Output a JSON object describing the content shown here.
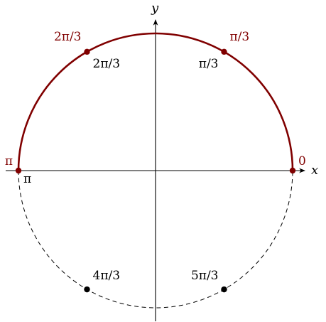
{
  "axes": {
    "x_label": "x",
    "y_label": "y"
  },
  "colors": {
    "accent": "#800000",
    "ink": "#000000"
  },
  "arc": {
    "from_angle": "0",
    "to_angle": "π",
    "style": "solid",
    "color": "#800000"
  },
  "lower_arc": {
    "style": "dashed",
    "color": "#000000"
  },
  "points": [
    {
      "name": "point-0",
      "angle": 0,
      "label": "0",
      "label_color": "#800000",
      "dot_color": "#800000"
    },
    {
      "name": "point-pi-over-3",
      "angle": 60,
      "label": "π/3",
      "label_color": "#800000",
      "dot_color": "#800000",
      "inner_label": "π/3"
    },
    {
      "name": "point-2pi-over-3",
      "angle": 120,
      "label": "2π/3",
      "label_color": "#800000",
      "dot_color": "#800000",
      "inner_label": "2π/3"
    },
    {
      "name": "point-pi",
      "angle": 180,
      "label": "π",
      "label_color": "#800000",
      "dot_color": "#800000",
      "inner_label": "π"
    },
    {
      "name": "point-4pi-over-3",
      "angle": 240,
      "label": "4π/3",
      "label_color": "#000000",
      "dot_color": "#000000"
    },
    {
      "name": "point-5pi-over-3",
      "angle": 300,
      "label": "5π/3",
      "label_color": "#000000",
      "dot_color": "#000000"
    }
  ]
}
